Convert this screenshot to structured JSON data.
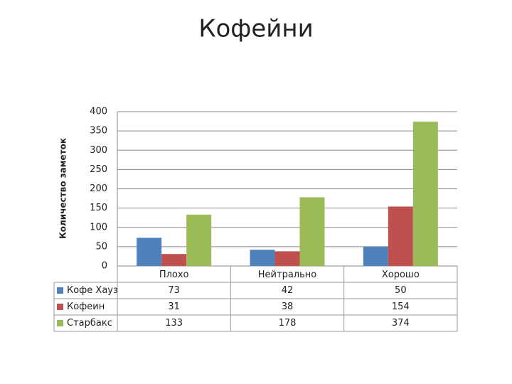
{
  "chart_data": {
    "type": "bar",
    "title": "Кофейни",
    "y_label": "Количество заметок",
    "categories": [
      "Плохо",
      "Нейтрально",
      "Хорошо"
    ],
    "series": [
      {
        "name": "Кофе Хауз",
        "color": "#4f81bd",
        "values": [
          73,
          42,
          50
        ]
      },
      {
        "name": "Кофеин",
        "color": "#c0504d",
        "values": [
          31,
          38,
          154
        ]
      },
      {
        "name": "Старбакс",
        "color": "#9bbb59",
        "values": [
          133,
          178,
          374
        ]
      }
    ],
    "ylim": [
      0,
      400
    ],
    "yticks": [
      0,
      50,
      100,
      150,
      200,
      250,
      300,
      350,
      400
    ],
    "grid": true,
    "data_table": true
  }
}
